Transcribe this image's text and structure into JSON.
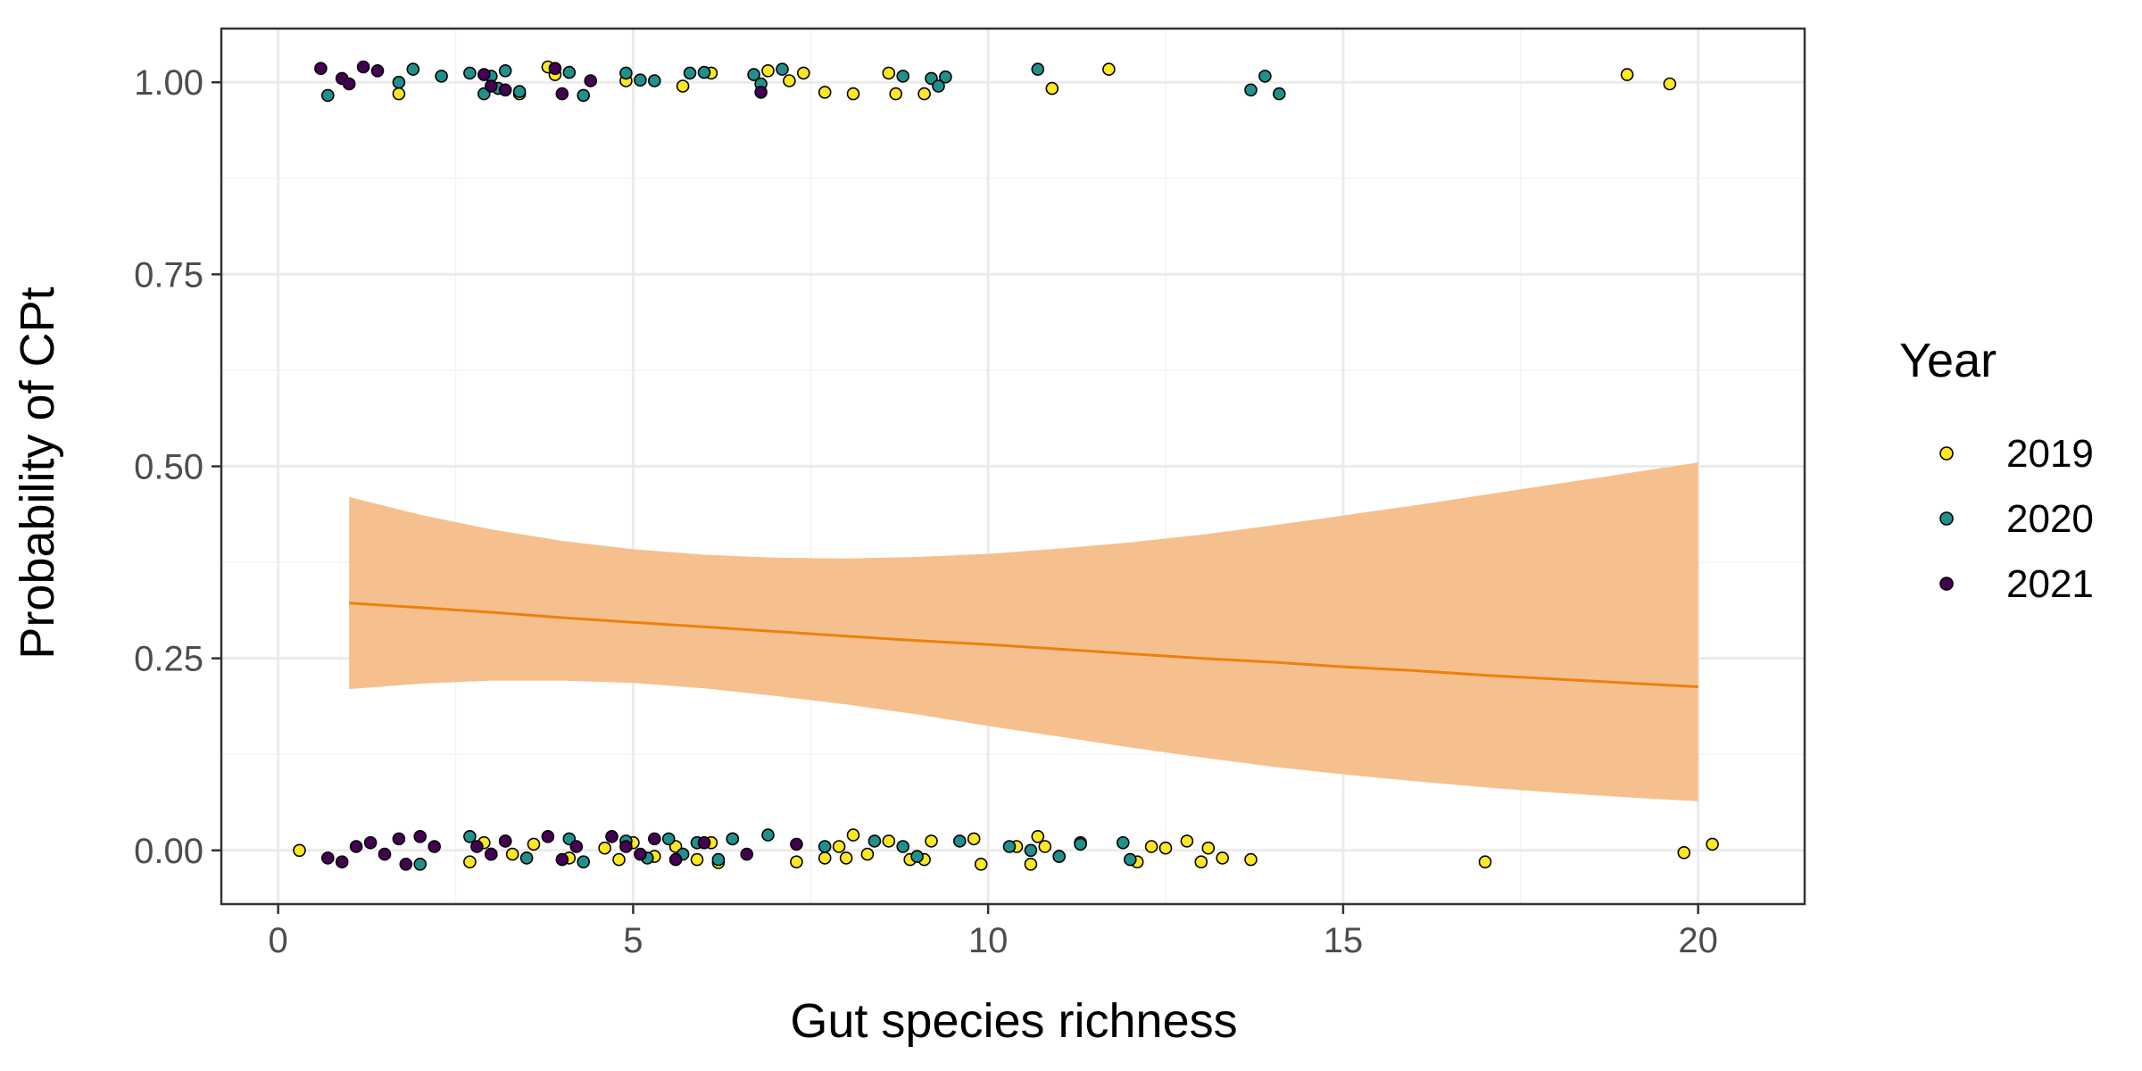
{
  "chart_data": {
    "type": "scatter",
    "xlabel": "Gut species richness",
    "ylabel": "Probability of CPt",
    "xlim": [
      -0.8,
      21.5
    ],
    "ylim": [
      -0.07,
      1.07
    ],
    "xticks": [
      0,
      5,
      10,
      15,
      20
    ],
    "xtick_labels": [
      "0",
      "5",
      "10",
      "15",
      "20"
    ],
    "yticks": [
      0,
      0.25,
      0.5,
      0.75,
      1
    ],
    "ytick_labels": [
      "0.00",
      "0.25",
      "0.50",
      "0.75",
      "1.00"
    ],
    "grid": true,
    "legend": {
      "title": "Year",
      "position": "right",
      "entries": [
        "2019",
        "2020",
        "2021"
      ]
    },
    "colors": {
      "2019": "#FDE725",
      "2020": "#21908C",
      "2021": "#440154",
      "fit_line": "#F07F0A",
      "ribbon": "#F5C08E",
      "grid_major": "#EBEBEB",
      "grid_minor": "#F3F3F3",
      "axis_text": "#4D4D4D"
    },
    "fit": {
      "x": [
        1,
        2,
        3,
        4,
        5,
        6,
        7,
        8,
        9,
        10,
        11,
        12,
        13,
        14,
        15,
        16,
        17,
        18,
        19,
        20
      ],
      "y": [
        0.322,
        0.316,
        0.31,
        0.303,
        0.297,
        0.291,
        0.285,
        0.279,
        0.273,
        0.268,
        0.262,
        0.256,
        0.25,
        0.245,
        0.239,
        0.234,
        0.228,
        0.223,
        0.218,
        0.213
      ],
      "lower": [
        0.21,
        0.217,
        0.221,
        0.221,
        0.218,
        0.211,
        0.201,
        0.19,
        0.177,
        0.162,
        0.148,
        0.134,
        0.121,
        0.109,
        0.099,
        0.09,
        0.082,
        0.075,
        0.069,
        0.064
      ],
      "upper": [
        0.46,
        0.437,
        0.418,
        0.403,
        0.392,
        0.385,
        0.381,
        0.38,
        0.382,
        0.386,
        0.393,
        0.401,
        0.411,
        0.423,
        0.436,
        0.449,
        0.463,
        0.477,
        0.491,
        0.505
      ]
    },
    "series": [
      {
        "name": "2019",
        "x": [
          3.8,
          3.9,
          3.4,
          4.9,
          5.7,
          6.1,
          6.9,
          7.2,
          7.4,
          7.7,
          8.1,
          8.6,
          8.7,
          9.1,
          10.9,
          11.7,
          19.0,
          19.6,
          1.7,
          0.3,
          2.7,
          2.9,
          3.3,
          3.6,
          4.1,
          4.6,
          4.8,
          5.0,
          5.3,
          5.6,
          5.9,
          6.1,
          6.2,
          6.4,
          7.3,
          7.7,
          7.9,
          8.0,
          8.1,
          8.3,
          8.6,
          8.9,
          9.1,
          9.2,
          9.8,
          9.9,
          10.4,
          10.6,
          10.7,
          10.8,
          11.0,
          11.3,
          12.1,
          12.3,
          12.5,
          12.8,
          13.0,
          13.1,
          13.3,
          13.7,
          17.0,
          19.8,
          20.2
        ],
        "y": [
          1.02,
          1.01,
          0.985,
          1.002,
          0.995,
          1.012,
          1.015,
          1.002,
          1.012,
          0.987,
          0.985,
          1.012,
          0.985,
          0.985,
          0.992,
          1.017,
          1.01,
          0.998,
          0.985,
          0,
          -0.015,
          0.01,
          -0.005,
          0.008,
          -0.01,
          0.003,
          -0.012,
          0.01,
          -0.008,
          0.005,
          -0.012,
          0.01,
          -0.016,
          0.015,
          -0.015,
          -0.01,
          0.005,
          -0.01,
          0.02,
          -0.005,
          0.012,
          -0.012,
          -0.012,
          0.012,
          0.015,
          -0.018,
          0.005,
          -0.018,
          0.018,
          0.005,
          -0.008,
          0.01,
          -0.015,
          0.005,
          0.003,
          0.012,
          -0.015,
          0.003,
          -0.01,
          -0.012,
          -0.015,
          -0.003,
          0.008
        ]
      },
      {
        "name": "2020",
        "x": [
          0.7,
          1.7,
          1.9,
          2.3,
          2.7,
          2.9,
          3.0,
          3.1,
          3.2,
          3.4,
          4.1,
          4.3,
          4.9,
          5.1,
          5.3,
          5.8,
          6.0,
          6.7,
          6.8,
          7.1,
          8.8,
          9.2,
          9.3,
          9.4,
          10.7,
          13.7,
          13.9,
          14.1,
          2.0,
          2.7,
          3.0,
          3.2,
          3.5,
          4.1,
          4.3,
          4.9,
          5.2,
          5.5,
          5.7,
          5.9,
          6.2,
          6.4,
          6.9,
          7.7,
          8.4,
          8.8,
          9.0,
          9.6,
          10.3,
          10.6,
          11.0,
          11.3,
          11.9,
          12.0
        ],
        "y": [
          0.983,
          1,
          1.017,
          1.008,
          1.012,
          0.985,
          1.008,
          0.992,
          1.015,
          0.988,
          1.013,
          0.983,
          1.012,
          1.003,
          1.002,
          1.012,
          1.013,
          1.01,
          0.998,
          1.017,
          1.008,
          1.005,
          0.995,
          1.007,
          1.017,
          0.99,
          1.008,
          0.985,
          -0.018,
          0.018,
          -0.005,
          0.012,
          -0.01,
          0.015,
          -0.015,
          0.012,
          -0.01,
          0.015,
          -0.005,
          0.01,
          -0.012,
          0.015,
          0.02,
          0.005,
          0.012,
          0.005,
          -0.008,
          0.012,
          0.005,
          0,
          -0.008,
          0.008,
          0.01,
          -0.012
        ]
      },
      {
        "name": "2021",
        "x": [
          0.6,
          0.9,
          1.0,
          1.2,
          1.4,
          2.9,
          3.0,
          3.2,
          3.9,
          4.0,
          4.4,
          6.8,
          0.7,
          0.9,
          1.1,
          1.3,
          1.5,
          1.7,
          1.8,
          2.0,
          2.2,
          2.8,
          3.0,
          3.2,
          3.8,
          4.0,
          4.2,
          4.7,
          4.9,
          5.1,
          5.3,
          5.6,
          6.0,
          6.6,
          7.3
        ],
        "y": [
          1.018,
          1.005,
          0.998,
          1.02,
          1.015,
          1.01,
          0.995,
          0.99,
          1.018,
          0.985,
          1.002,
          0.987,
          -0.01,
          -0.015,
          0.005,
          0.01,
          -0.005,
          0.015,
          -0.018,
          0.018,
          0.005,
          0.005,
          -0.005,
          0.012,
          0.018,
          -0.012,
          0.005,
          0.018,
          0.005,
          -0.005,
          0.015,
          -0.012,
          0.01,
          -0.005,
          0.008
        ]
      }
    ]
  }
}
